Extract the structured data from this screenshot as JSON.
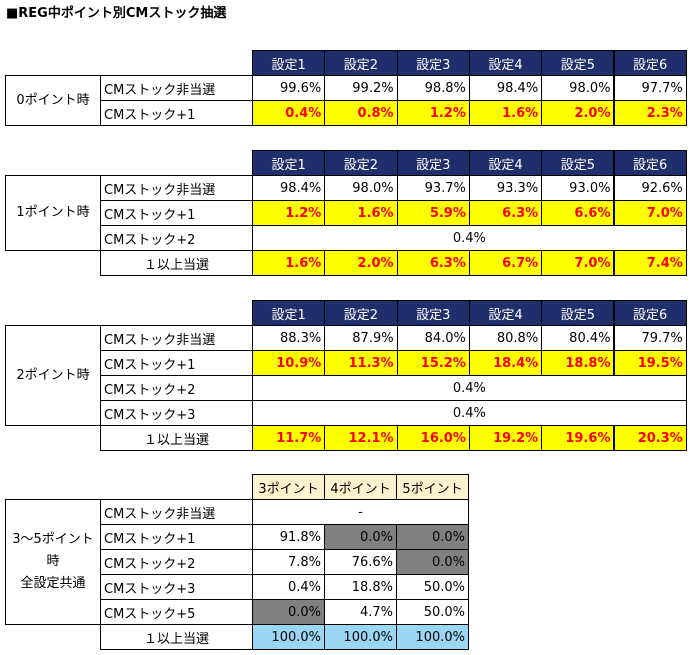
{
  "title": "■REG中ポイント別CMストック抽選",
  "tables": [
    {
      "headers": [
        "設定1",
        "設定2",
        "設定3",
        "設定4",
        "設定5",
        "設定6"
      ],
      "group": [
        "0ポイント時"
      ],
      "rows": [
        {
          "label": "CMストック非当選",
          "cells": [
            "99.6%",
            "99.2%",
            "98.8%",
            "98.4%",
            "98.0%",
            "97.7%"
          ]
        },
        {
          "label": "CMストック+1",
          "cells": [
            "0.4%",
            "0.8%",
            "1.2%",
            "1.6%",
            "2.0%",
            "2.3%"
          ]
        }
      ]
    },
    {
      "headers": [
        "設定1",
        "設定2",
        "設定3",
        "設定4",
        "設定5",
        "設定6"
      ],
      "group": [
        "1ポイント時"
      ],
      "rows": [
        {
          "label": "CMストック非当選",
          "cells": [
            "98.4%",
            "98.0%",
            "93.7%",
            "93.3%",
            "93.0%",
            "92.6%"
          ]
        },
        {
          "label": "CMストック+1",
          "cells": [
            "1.2%",
            "1.6%",
            "5.9%",
            "6.3%",
            "6.6%",
            "7.0%"
          ]
        },
        {
          "label": "CMストック+2",
          "cells": [
            "0.4%"
          ]
        }
      ],
      "total": {
        "label": "１以上当選",
        "cells": [
          "1.6%",
          "2.0%",
          "6.3%",
          "6.7%",
          "7.0%",
          "7.4%"
        ]
      }
    },
    {
      "headers": [
        "設定1",
        "設定2",
        "設定3",
        "設定4",
        "設定5",
        "設定6"
      ],
      "group": [
        "2ポイント時"
      ],
      "rows": [
        {
          "label": "CMストック非当選",
          "cells": [
            "88.3%",
            "87.9%",
            "84.0%",
            "80.8%",
            "80.4%",
            "79.7%"
          ]
        },
        {
          "label": "CMストック+1",
          "cells": [
            "10.9%",
            "11.3%",
            "15.2%",
            "18.4%",
            "18.8%",
            "19.5%"
          ]
        },
        {
          "label": "CMストック+2",
          "cells": [
            "0.4%"
          ]
        },
        {
          "label": "CMストック+3",
          "cells": [
            "0.4%"
          ]
        }
      ],
      "total": {
        "label": "１以上当選",
        "cells": [
          "11.7%",
          "12.1%",
          "16.0%",
          "19.2%",
          "19.6%",
          "20.3%"
        ]
      }
    },
    {
      "headers": [
        "3ポイント",
        "4ポイント",
        "5ポイント"
      ],
      "group": [
        "3〜5ポイント時",
        "全設定共通"
      ],
      "rows": [
        {
          "label": "CMストック非当選",
          "cells": [
            "-"
          ]
        },
        {
          "label": "CMストック+1",
          "cells": [
            "91.8%",
            "0.0%",
            "0.0%"
          ]
        },
        {
          "label": "CMストック+2",
          "cells": [
            "7.8%",
            "76.6%",
            "0.0%"
          ]
        },
        {
          "label": "CMストック+3",
          "cells": [
            "0.4%",
            "18.8%",
            "50.0%"
          ]
        },
        {
          "label": "CMストック+5",
          "cells": [
            "0.0%",
            "4.7%",
            "50.0%"
          ]
        }
      ],
      "total": {
        "label": "１以上当選",
        "cells": [
          "100.0%",
          "100.0%",
          "100.0%"
        ]
      }
    }
  ]
}
